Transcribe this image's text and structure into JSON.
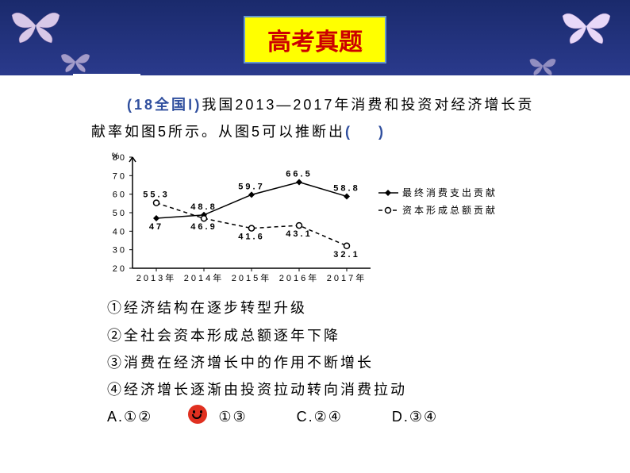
{
  "header": {
    "title": "高考真题",
    "title_color": "#cc0000",
    "title_bg": "#ffff00",
    "bar_bg": "#1a2a6c"
  },
  "question": {
    "source_tag": "(18全国Ⅰ)",
    "text_part1": "我国2013—2017年消费和投资对经济增长贡献率如图5所示。从图5可以推断出",
    "blank": "(　　)"
  },
  "chart": {
    "type": "line",
    "xlabels": [
      "2013年",
      "2014年",
      "2015年",
      "2016年",
      "2017年"
    ],
    "ylim": [
      20,
      80
    ],
    "ytick_step": 10,
    "yticks": [
      20,
      30,
      40,
      50,
      60,
      70,
      80
    ],
    "ylabel_unit": "%",
    "series": [
      {
        "name": "最终消费支出贡献",
        "marker": "diamond",
        "line_style": "solid",
        "color": "#000000",
        "values": [
          47,
          48.8,
          59.7,
          66.5,
          58.8
        ],
        "label_positions": [
          "below",
          "above",
          "above",
          "above",
          "above"
        ]
      },
      {
        "name": "资本形成总额贡献",
        "marker": "circle-open",
        "line_style": "dashed",
        "color": "#000000",
        "values": [
          55.3,
          46.9,
          41.6,
          43.1,
          32.1
        ],
        "label_positions": [
          "above",
          "below",
          "below",
          "below",
          "below"
        ]
      }
    ],
    "plot_bg": "#ffffff",
    "axis_color": "#000000",
    "font_size": 11
  },
  "options": {
    "opt1": "①经济结构在逐步转型升级",
    "opt2": "②全社会资本形成总额逐年下降",
    "opt3": "③消费在经济增长中的作用不断增长",
    "opt4": "④经济增长逐渐由投资拉动转向消费拉动"
  },
  "answers": {
    "A": "A.①②",
    "B": "①③",
    "C": "C.②④",
    "D": "D.③④",
    "correct_marker_on": "B"
  }
}
